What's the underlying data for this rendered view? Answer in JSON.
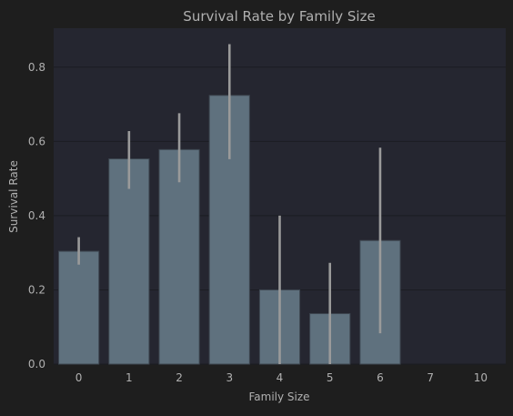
{
  "colors": {
    "figure_bg": "#1e1e1e",
    "axes_bg": "#252630",
    "bar_fill": "#5f717e",
    "bar_edge": "#3d4650",
    "error_bar": "#9a9a9a",
    "grid": "#1b1c22",
    "text": "#b0b0b0"
  },
  "chart_data": {
    "type": "bar",
    "title": "Survival Rate by Family Size",
    "xlabel": "Family Size",
    "ylabel": "Survival Rate",
    "categories": [
      "0",
      "1",
      "2",
      "3",
      "4",
      "5",
      "6",
      "7",
      "10"
    ],
    "values": [
      0.304,
      0.553,
      0.578,
      0.724,
      0.2,
      0.136,
      0.333,
      0,
      0
    ],
    "error_low": [
      0.268,
      0.472,
      0.49,
      0.552,
      0.0,
      0.0,
      0.083,
      null,
      null
    ],
    "error_high": [
      0.342,
      0.628,
      0.676,
      0.862,
      0.4,
      0.273,
      0.583,
      null,
      null
    ],
    "yticks": [
      0.0,
      0.2,
      0.4,
      0.6,
      0.8
    ],
    "ytick_labels": [
      "0.0",
      "0.2",
      "0.4",
      "0.6",
      "0.8"
    ],
    "ylim": [
      0,
      0.905
    ],
    "grid": true,
    "legend": false
  }
}
